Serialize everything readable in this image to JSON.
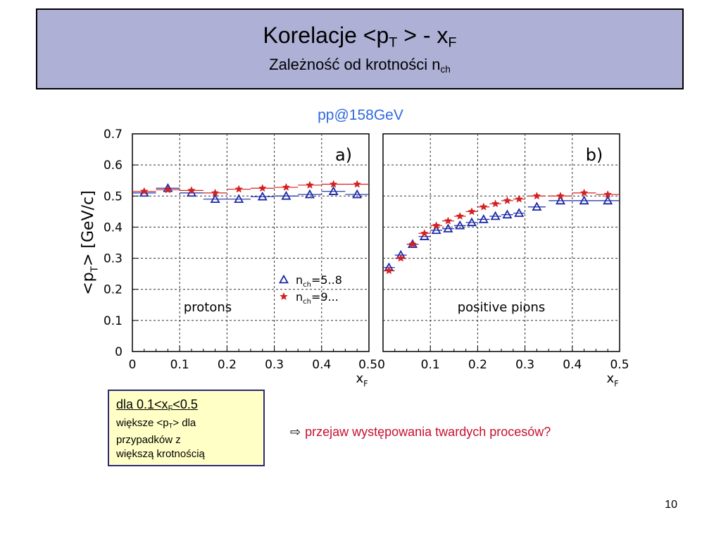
{
  "slide": {
    "title_prefix": "Korelacje <p",
    "title_sub_T": "T",
    "title_mid": " > - x",
    "title_sub_F": "F",
    "subtitle_prefix": "Zależność od krotności n",
    "subtitle_sub": "ch",
    "energy_label": "pp@158GeV",
    "note_head_prefix": "dla 0.1<x",
    "note_head_sub": "F",
    "note_head_suffix": "<0.5",
    "note_line1_prefix": "większe <p",
    "note_line1_sub": "T",
    "note_line1_suffix": "> dla",
    "note_line2": "przypadków z",
    "note_line3": "większą krotnością",
    "conclusion_arrow": "⇨",
    "conclusion_text": "przejaw występowania twardych procesów?",
    "page_number": "10"
  },
  "colors": {
    "title_bg": "#aeb0d6",
    "energy_label": "#2f6ae0",
    "series_low": "#1c2aa6",
    "series_high": "#d42020",
    "note_bg": "#ffffc6",
    "conclusion": "#c8102e"
  },
  "chart_data": [
    {
      "type": "scatter",
      "panel_label": "a)",
      "annotation": "protons",
      "ylabel": "<p_T> [GeV/c]",
      "xlabel": "x_F",
      "xlim": [
        0,
        0.5
      ],
      "ylim": [
        0,
        0.7
      ],
      "xticks": [
        "0",
        "0.1",
        "0.2",
        "0.3",
        "0.4",
        "0.5"
      ],
      "yticks": [
        "0",
        "0.1",
        "0.2",
        "0.3",
        "0.4",
        "0.5",
        "0.6",
        "0.7"
      ],
      "grid": true,
      "legend_position": "middle-right",
      "series": [
        {
          "name": "n_ch=5..8",
          "marker": "triangle",
          "x": [
            0.025,
            0.075,
            0.125,
            0.175,
            0.225,
            0.275,
            0.325,
            0.375,
            0.425,
            0.475
          ],
          "y": [
            0.51,
            0.525,
            0.51,
            0.49,
            0.49,
            0.498,
            0.5,
            0.505,
            0.515,
            0.505
          ]
        },
        {
          "name": "n_ch=9...",
          "marker": "star",
          "x": [
            0.025,
            0.075,
            0.125,
            0.175,
            0.225,
            0.275,
            0.325,
            0.375,
            0.425,
            0.475
          ],
          "y": [
            0.515,
            0.52,
            0.518,
            0.51,
            0.522,
            0.525,
            0.528,
            0.535,
            0.538,
            0.538
          ]
        }
      ]
    },
    {
      "type": "scatter",
      "panel_label": "b)",
      "annotation": "positive pions",
      "xlabel": "x_F",
      "xlim": [
        0,
        0.5
      ],
      "ylim": [
        0,
        0.7
      ],
      "xticks": [
        "0",
        "0.1",
        "0.2",
        "0.3",
        "0.4",
        "0.5"
      ],
      "grid": true,
      "series": [
        {
          "name": "n_ch=5..8",
          "marker": "triangle",
          "x": [
            0.0125,
            0.0375,
            0.0625,
            0.0875,
            0.1125,
            0.1375,
            0.1625,
            0.1875,
            0.2125,
            0.2375,
            0.2625,
            0.2875,
            0.325,
            0.375,
            0.425,
            0.475
          ],
          "y": [
            0.27,
            0.31,
            0.345,
            0.37,
            0.39,
            0.395,
            0.405,
            0.415,
            0.425,
            0.435,
            0.44,
            0.445,
            0.465,
            0.485,
            0.485,
            0.485
          ]
        },
        {
          "name": "n_ch=9...",
          "marker": "star",
          "x": [
            0.0125,
            0.0375,
            0.0625,
            0.0875,
            0.1125,
            0.1375,
            0.1625,
            0.1875,
            0.2125,
            0.2375,
            0.2625,
            0.2875,
            0.325,
            0.375,
            0.425,
            0.475
          ],
          "y": [
            0.26,
            0.3,
            0.345,
            0.38,
            0.405,
            0.42,
            0.435,
            0.45,
            0.465,
            0.475,
            0.485,
            0.49,
            0.5,
            0.5,
            0.51,
            0.505
          ]
        }
      ]
    }
  ]
}
